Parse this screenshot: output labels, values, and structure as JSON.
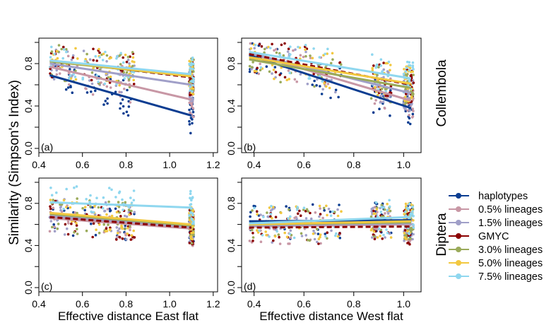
{
  "ylabel": "Similarity (Simpson's Index)",
  "row_labels": [
    "Collembola",
    "Diptera"
  ],
  "colors": {
    "haplotypes": "#0b3d91",
    "lin05": "#c897a5",
    "lin15": "#a09fc8",
    "gmyc": "#8b0000",
    "lin30": "#9aaa5a",
    "lin50": "#f2c840",
    "lin75": "#8fd7ef"
  },
  "legend": [
    {
      "key": "haplotypes",
      "label": "haplotypes"
    },
    {
      "key": "lin05",
      "label": "0.5% lineages"
    },
    {
      "key": "lin15",
      "label": "1.5% lineages"
    },
    {
      "key": "gmyc",
      "label": "GMYC"
    },
    {
      "key": "lin30",
      "label": "3.0% lineages"
    },
    {
      "key": "lin50",
      "label": "5.0% lineages"
    },
    {
      "key": "lin75",
      "label": "7.5% lineages"
    }
  ],
  "chart_data": [
    {
      "type": "scatter",
      "panel": "(a)",
      "xlabel": "",
      "xlim": [
        0.4,
        1.22
      ],
      "ylim": [
        0,
        1
      ],
      "xticks": [
        "0.4",
        "0.6",
        "0.8",
        "1.0",
        "1.2"
      ],
      "yticks": [
        "0.0",
        "0.4",
        "0.8"
      ],
      "clusters": [
        [
          0.45,
          0.58,
          12
        ],
        [
          0.6,
          0.74,
          12
        ],
        [
          0.75,
          0.84,
          14
        ],
        [
          1.09,
          1.11,
          24
        ]
      ],
      "series": [
        {
          "key": "haplotypes",
          "fit": [
            [
              0.45,
              0.69
            ],
            [
              1.1,
              0.31
            ]
          ]
        },
        {
          "key": "lin05",
          "fit": [
            [
              0.45,
              0.77
            ],
            [
              1.1,
              0.46
            ]
          ]
        },
        {
          "key": "lin15",
          "fit": [
            [
              0.45,
              0.8
            ],
            [
              1.1,
              0.6
            ]
          ]
        },
        {
          "key": "gmyc",
          "fit": [
            [
              0.45,
              0.83
            ],
            [
              1.1,
              0.67
            ]
          ]
        },
        {
          "key": "lin30",
          "fit": [
            [
              0.45,
              0.82
            ],
            [
              1.1,
              0.68
            ]
          ]
        },
        {
          "key": "lin50",
          "fit": [
            [
              0.45,
              0.83
            ],
            [
              1.1,
              0.68
            ]
          ]
        },
        {
          "key": "lin75",
          "fit": [
            [
              0.45,
              0.83
            ],
            [
              1.1,
              0.7
            ]
          ]
        }
      ]
    },
    {
      "type": "scatter",
      "panel": "(b)",
      "xlabel": "",
      "xlim": [
        0.35,
        1.07
      ],
      "ylim": [
        0,
        1
      ],
      "xticks": [
        "0.4",
        "0.6",
        "0.8",
        "1.0"
      ],
      "yticks": [
        "0.0",
        "0.4",
        "0.8"
      ],
      "clusters": [
        [
          0.38,
          0.55,
          14
        ],
        [
          0.55,
          0.75,
          14
        ],
        [
          0.87,
          0.95,
          16
        ],
        [
          1.0,
          1.04,
          24
        ]
      ],
      "series": [
        {
          "key": "haplotypes",
          "fit": [
            [
              0.38,
              0.88
            ],
            [
              1.03,
              0.38
            ]
          ]
        },
        {
          "key": "lin05",
          "fit": [
            [
              0.38,
              0.9
            ],
            [
              1.03,
              0.45
            ]
          ]
        },
        {
          "key": "lin15",
          "fit": [
            [
              0.38,
              0.9
            ],
            [
              1.03,
              0.52
            ]
          ]
        },
        {
          "key": "gmyc",
          "fit": [
            [
              0.38,
              0.89
            ],
            [
              1.03,
              0.6
            ]
          ]
        },
        {
          "key": "lin30",
          "fit": [
            [
              0.38,
              0.84
            ],
            [
              1.03,
              0.57
            ]
          ]
        },
        {
          "key": "lin50",
          "fit": [
            [
              0.38,
              0.86
            ],
            [
              1.03,
              0.61
            ]
          ]
        },
        {
          "key": "lin75",
          "fit": [
            [
              0.38,
              0.91
            ],
            [
              1.03,
              0.66
            ]
          ]
        }
      ]
    },
    {
      "type": "scatter",
      "panel": "(c)",
      "xlabel": "Effective distance East flat",
      "xlim": [
        0.4,
        1.22
      ],
      "ylim": [
        0,
        1
      ],
      "xticks": [
        "0.4",
        "0.6",
        "0.8",
        "1.0",
        "1.2"
      ],
      "yticks": [
        "0.0",
        "0.4",
        "0.8"
      ],
      "clusters": [
        [
          0.45,
          0.58,
          12
        ],
        [
          0.6,
          0.74,
          12
        ],
        [
          0.75,
          0.84,
          14
        ],
        [
          1.09,
          1.11,
          24
        ]
      ],
      "series": [
        {
          "key": "haplotypes",
          "fit": [
            [
              0.45,
              0.66
            ],
            [
              1.1,
              0.58
            ]
          ]
        },
        {
          "key": "lin05",
          "fit": [
            [
              0.45,
              0.66
            ],
            [
              1.1,
              0.56
            ]
          ]
        },
        {
          "key": "lin15",
          "fit": [
            [
              0.45,
              0.68
            ],
            [
              1.1,
              0.58
            ]
          ]
        },
        {
          "key": "gmyc",
          "fit": [
            [
              0.45,
              0.67
            ],
            [
              1.1,
              0.57
            ]
          ]
        },
        {
          "key": "lin30",
          "fit": [
            [
              0.45,
              0.7
            ],
            [
              1.1,
              0.59
            ]
          ]
        },
        {
          "key": "lin50",
          "fit": [
            [
              0.45,
              0.71
            ],
            [
              1.1,
              0.6
            ]
          ]
        },
        {
          "key": "lin75",
          "fit": [
            [
              0.45,
              0.81
            ],
            [
              1.1,
              0.76
            ]
          ]
        }
      ]
    },
    {
      "type": "scatter",
      "panel": "(d)",
      "xlabel": "Effective distance West flat",
      "xlim": [
        0.35,
        1.07
      ],
      "ylim": [
        0,
        1
      ],
      "xticks": [
        "0.4",
        "0.6",
        "0.8",
        "1.0"
      ],
      "yticks": [
        "0.0",
        "0.4",
        "0.8"
      ],
      "clusters": [
        [
          0.38,
          0.55,
          14
        ],
        [
          0.55,
          0.75,
          14
        ],
        [
          0.87,
          0.95,
          16
        ],
        [
          1.0,
          1.04,
          24
        ]
      ],
      "series": [
        {
          "key": "haplotypes",
          "fit": [
            [
              0.38,
              0.63
            ],
            [
              1.03,
              0.64
            ]
          ]
        },
        {
          "key": "lin05",
          "fit": [
            [
              0.38,
              0.58
            ],
            [
              1.03,
              0.6
            ]
          ]
        },
        {
          "key": "lin15",
          "fit": [
            [
              0.38,
              0.59
            ],
            [
              1.03,
              0.61
            ]
          ]
        },
        {
          "key": "gmyc",
          "fit": [
            [
              0.38,
              0.57
            ],
            [
              1.03,
              0.58
            ]
          ]
        },
        {
          "key": "lin30",
          "fit": [
            [
              0.38,
              0.6
            ],
            [
              1.03,
              0.62
            ]
          ]
        },
        {
          "key": "lin50",
          "fit": [
            [
              0.38,
              0.6
            ],
            [
              1.03,
              0.63
            ]
          ]
        },
        {
          "key": "lin75",
          "fit": [
            [
              0.38,
              0.61
            ],
            [
              1.03,
              0.67
            ]
          ]
        }
      ]
    }
  ]
}
